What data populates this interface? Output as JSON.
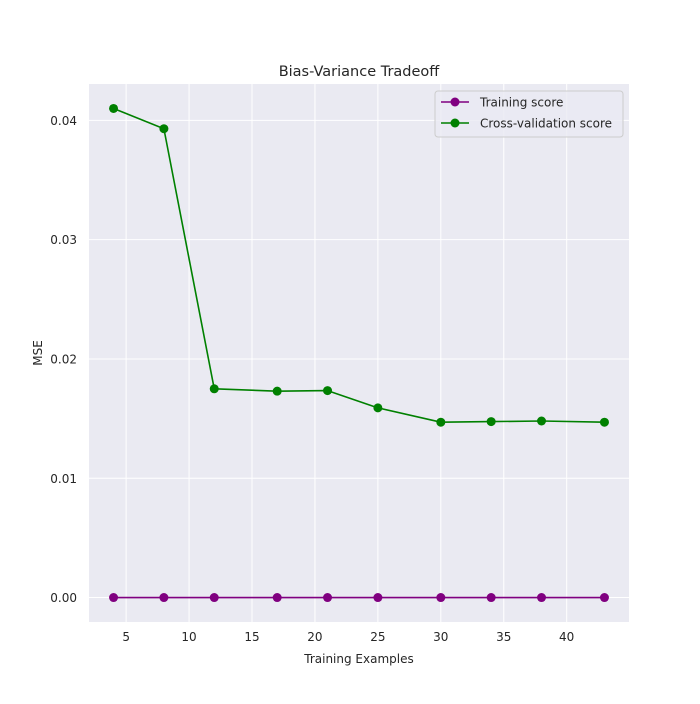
{
  "chart_data": {
    "type": "line",
    "title": "Bias-Variance Tradeoff",
    "xlabel": "Training Examples",
    "ylabel": "MSE",
    "xlim": [
      2.05,
      44.95
    ],
    "ylim": [
      -0.00205,
      0.04305
    ],
    "xticks": [
      5,
      10,
      15,
      20,
      25,
      30,
      35,
      40
    ],
    "xtick_labels": [
      "5",
      "10",
      "15",
      "20",
      "25",
      "30",
      "35",
      "40"
    ],
    "yticks": [
      0.0,
      0.01,
      0.02,
      0.03,
      0.04
    ],
    "ytick_labels": [
      "0.00",
      "0.01",
      "0.02",
      "0.03",
      "0.04"
    ],
    "grid": true,
    "legend_position": "upper right",
    "x": [
      4,
      8,
      12,
      17,
      21,
      25,
      30,
      34,
      38,
      43
    ],
    "series": [
      {
        "name": "Training score",
        "color": "#800080",
        "marker": "circle",
        "values": [
          0.0,
          0.0,
          0.0,
          0.0,
          0.0,
          0.0,
          0.0,
          0.0,
          0.0,
          0.0
        ]
      },
      {
        "name": "Cross-validation score",
        "color": "#008000",
        "marker": "circle",
        "values": [
          0.041,
          0.0393,
          0.0175,
          0.0173,
          0.01735,
          0.0159,
          0.0147,
          0.01475,
          0.0148,
          0.0147
        ]
      }
    ],
    "colors": {
      "plot_background": "#eaeaf2",
      "grid": "#ffffff",
      "text": "#262626"
    }
  }
}
